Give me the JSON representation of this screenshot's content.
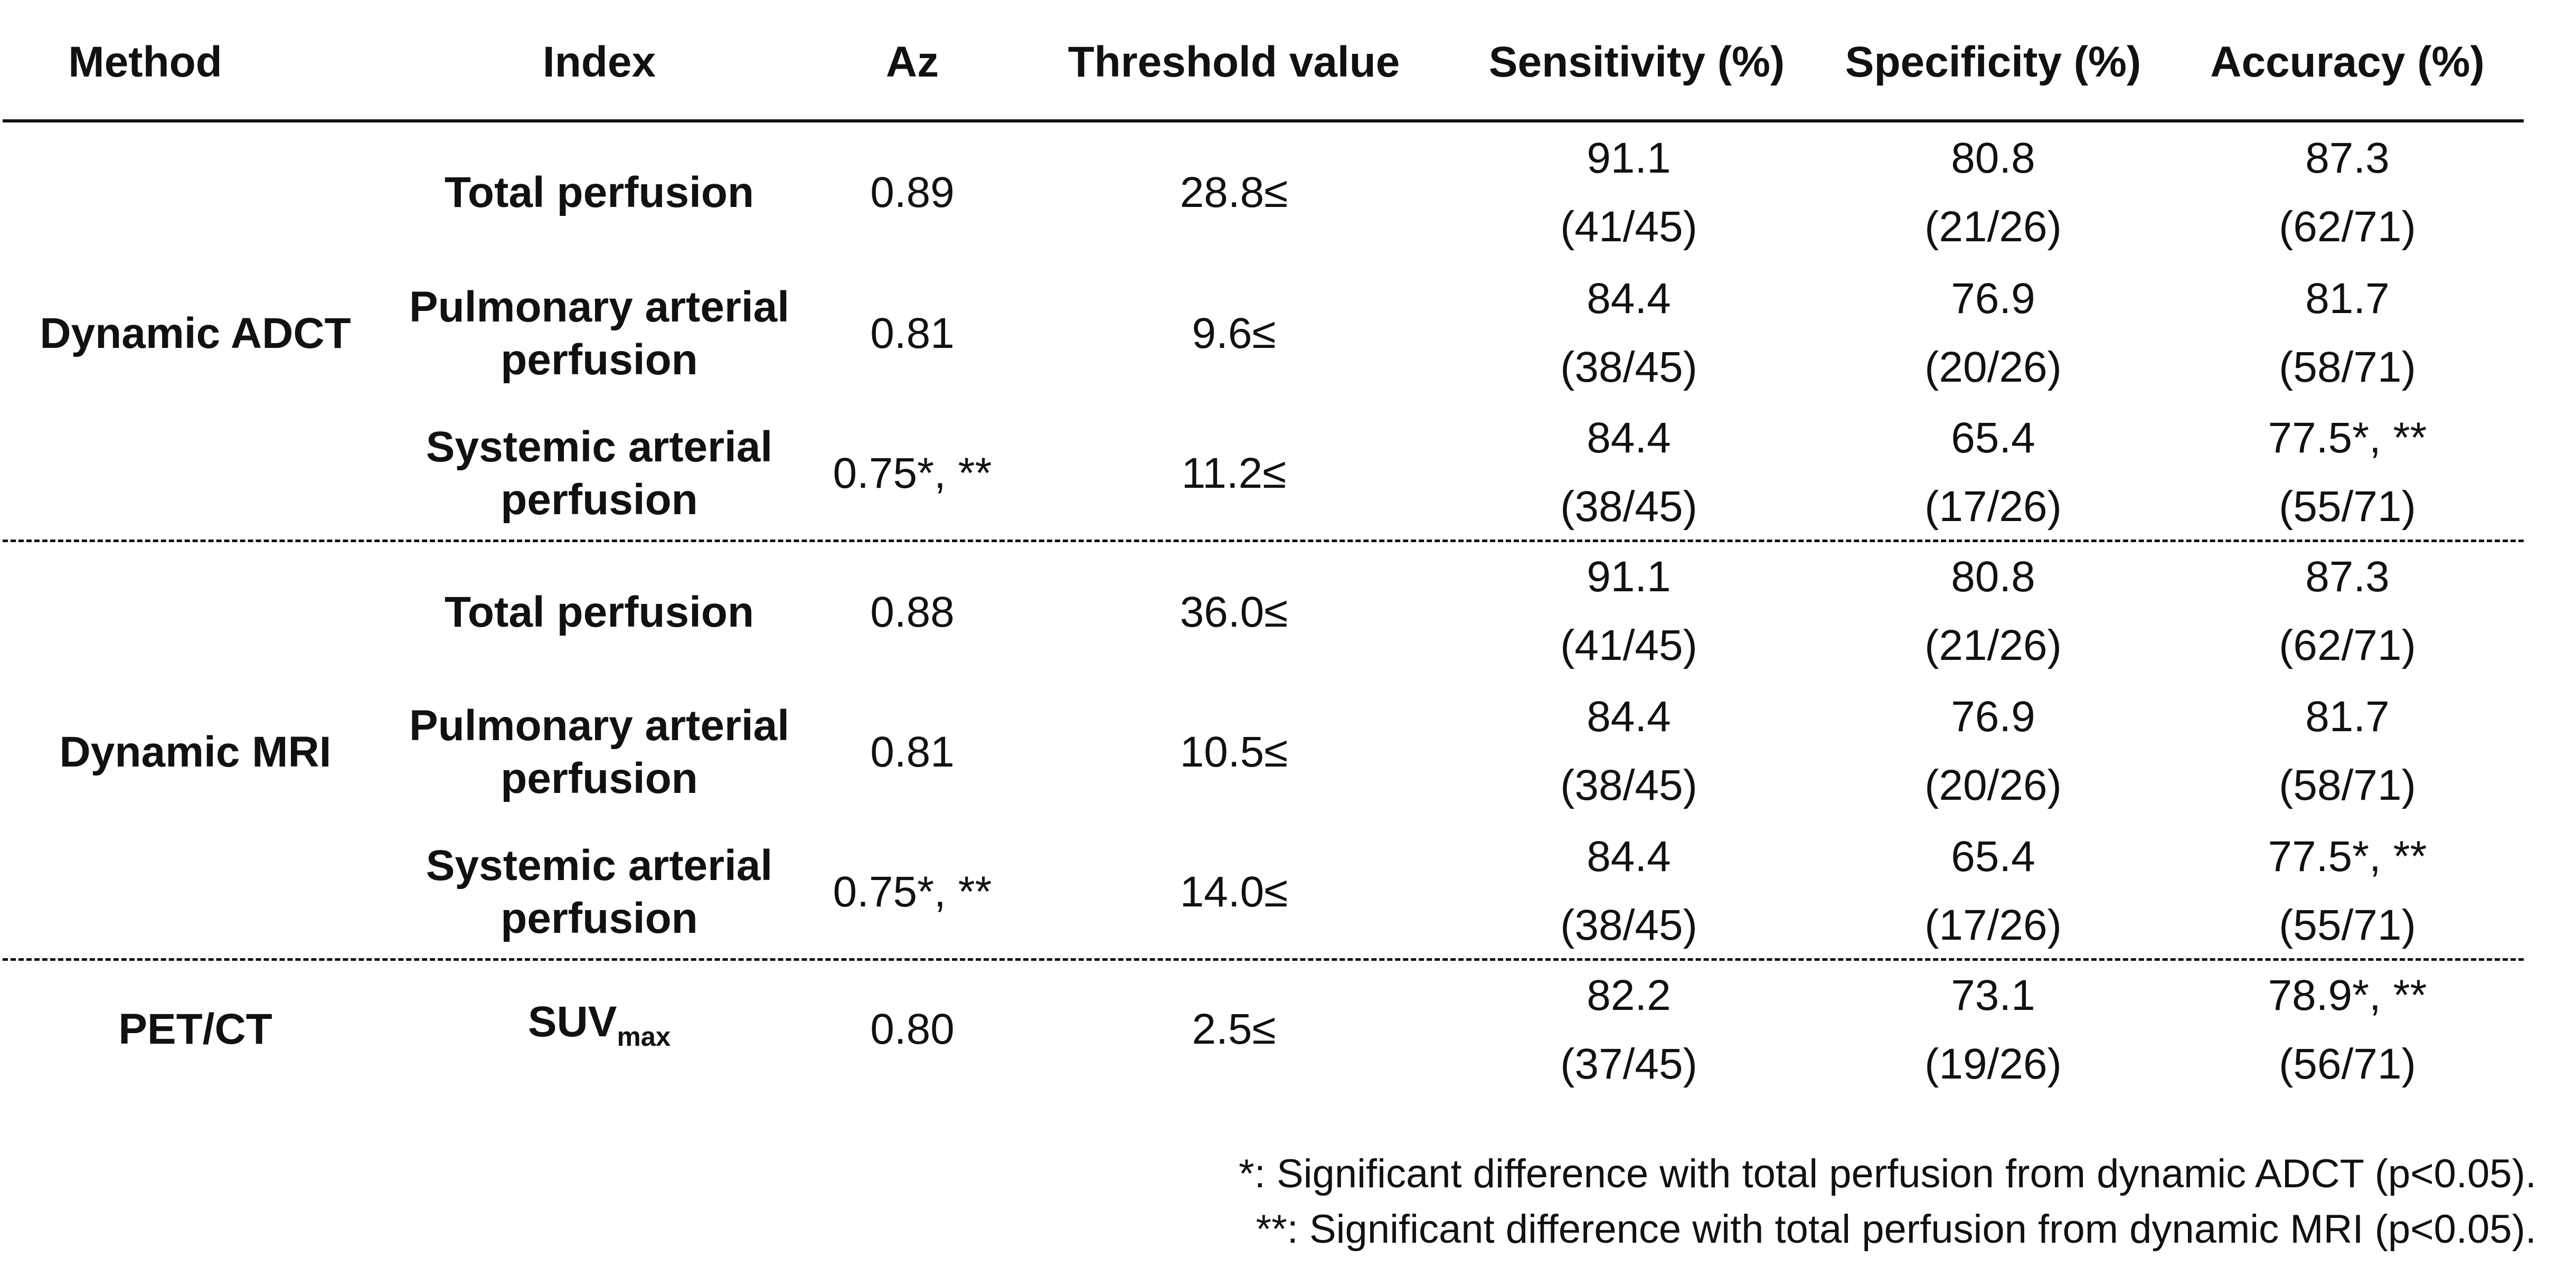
{
  "headers": [
    "Method",
    "Index",
    "Az",
    "Threshold value",
    "Sensitivity (%)",
    "Specificity (%)",
    "Accuracy (%)"
  ],
  "groups": [
    {
      "method": "Dynamic ADCT",
      "rows": [
        {
          "index": "Total perfusion",
          "az": "0.89",
          "threshold": "28.8≤",
          "sens": "91.1",
          "sens_frac": "(41/45)",
          "spec": "80.8",
          "spec_frac": "(21/26)",
          "acc": "87.3",
          "acc_frac": "(62/71)"
        },
        {
          "index_line1": "Pulmonary arterial",
          "index_line2": "perfusion",
          "az": "0.81",
          "threshold": "9.6≤",
          "sens": "84.4",
          "sens_frac": "(38/45)",
          "spec": "76.9",
          "spec_frac": "(20/26)",
          "acc": "81.7",
          "acc_frac": "(58/71)"
        },
        {
          "index_line1": "Systemic arterial",
          "index_line2": "perfusion",
          "az": "0.75*, **",
          "threshold": "11.2≤",
          "sens": "84.4",
          "sens_frac": "(38/45)",
          "spec": "65.4",
          "spec_frac": "(17/26)",
          "acc": "77.5*, **",
          "acc_frac": "(55/71)"
        }
      ]
    },
    {
      "method": "Dynamic MRI",
      "rows": [
        {
          "index": "Total perfusion",
          "az": "0.88",
          "threshold": "36.0≤",
          "sens": "91.1",
          "sens_frac": "(41/45)",
          "spec": "80.8",
          "spec_frac": "(21/26)",
          "acc": "87.3",
          "acc_frac": "(62/71)"
        },
        {
          "index_line1": "Pulmonary arterial",
          "index_line2": "perfusion",
          "az": "0.81",
          "threshold": "10.5≤",
          "sens": "84.4",
          "sens_frac": "(38/45)",
          "spec": "76.9",
          "spec_frac": "(20/26)",
          "acc": "81.7",
          "acc_frac": "(58/71)"
        },
        {
          "index_line1": "Systemic arterial",
          "index_line2": "perfusion",
          "az": "0.75*, **",
          "threshold": "14.0≤",
          "sens": "84.4",
          "sens_frac": "(38/45)",
          "spec": "65.4",
          "spec_frac": "(17/26)",
          "acc": "77.5*, **",
          "acc_frac": "(55/71)"
        }
      ]
    },
    {
      "method": "PET/CT",
      "rows": [
        {
          "index_main": "SUV",
          "index_sub": "max",
          "az": "0.80",
          "threshold": "2.5≤",
          "sens": "82.2",
          "sens_frac": "(37/45)",
          "spec": "73.1",
          "spec_frac": "(19/26)",
          "acc": "78.9*, **",
          "acc_frac": "(56/71)"
        }
      ]
    }
  ],
  "footnotes": [
    "*: Significant difference with total perfusion from dynamic ADCT (p<0.05).",
    "**: Significant difference with total perfusion from dynamic MRI (p<0.05)."
  ]
}
